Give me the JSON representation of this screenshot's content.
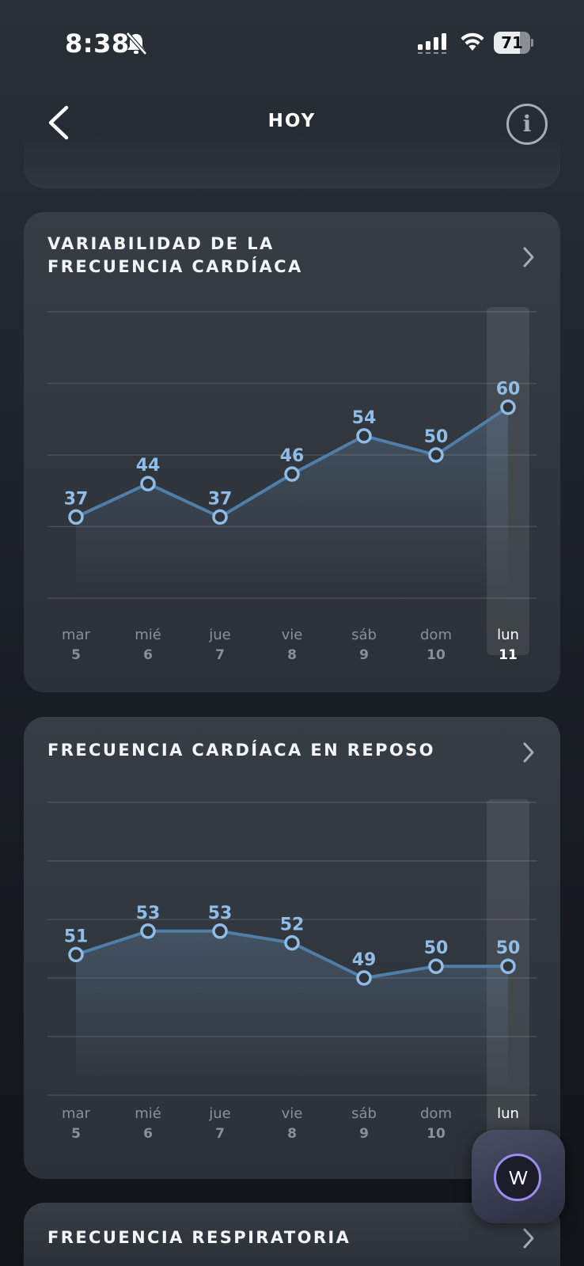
{
  "status_bar": {
    "time": "8:38",
    "battery": "71",
    "battery_level": 0.71
  },
  "nav": {
    "title": "HOY"
  },
  "cards": [
    {
      "title_lines": [
        "VARIABILIDAD DE LA",
        "FRECUENCIA CARDÍACA"
      ],
      "chart_data": {
        "type": "line",
        "categories": [
          "mar 5",
          "mié 6",
          "jue 7",
          "vie 8",
          "sáb 9",
          "dom 10",
          "lun 11"
        ],
        "days": [
          "mar",
          "mié",
          "jue",
          "vie",
          "sáb",
          "dom",
          "lun"
        ],
        "dates": [
          "5",
          "6",
          "7",
          "8",
          "9",
          "10",
          "11"
        ],
        "values": [
          37,
          44,
          37,
          46,
          54,
          50,
          60
        ],
        "ylim": [
          20,
          80
        ],
        "selected_index": 6,
        "grid": true,
        "colors": {
          "line": "#4f7fa8",
          "marker": "#8fbde8"
        }
      }
    },
    {
      "title_lines": [
        "FRECUENCIA CARDÍACA EN REPOSO"
      ],
      "chart_data": {
        "type": "line",
        "categories": [
          "mar 5",
          "mié 6",
          "jue 7",
          "vie 8",
          "sáb 9",
          "dom 10",
          "lun"
        ],
        "days": [
          "mar",
          "mié",
          "jue",
          "vie",
          "sáb",
          "dom",
          "lun"
        ],
        "dates": [
          "5",
          "6",
          "7",
          "8",
          "9",
          "10",
          ""
        ],
        "values": [
          51,
          53,
          53,
          52,
          49,
          50,
          50
        ],
        "ylim": [
          39,
          64
        ],
        "selected_index": 6,
        "grid": true,
        "colors": {
          "line": "#4f7fa8",
          "marker": "#8fbde8"
        }
      }
    },
    {
      "title_lines": [
        "FRECUENCIA RESPIRATORIA"
      ]
    }
  ],
  "icons": {
    "back": "chevron-left-icon",
    "info": "info-icon",
    "card_chevron": "chevron-right-icon",
    "fab": "whoop-coach-icon"
  },
  "fab": {
    "label": "\\/\\/"
  },
  "info": {
    "glyph": "i"
  }
}
